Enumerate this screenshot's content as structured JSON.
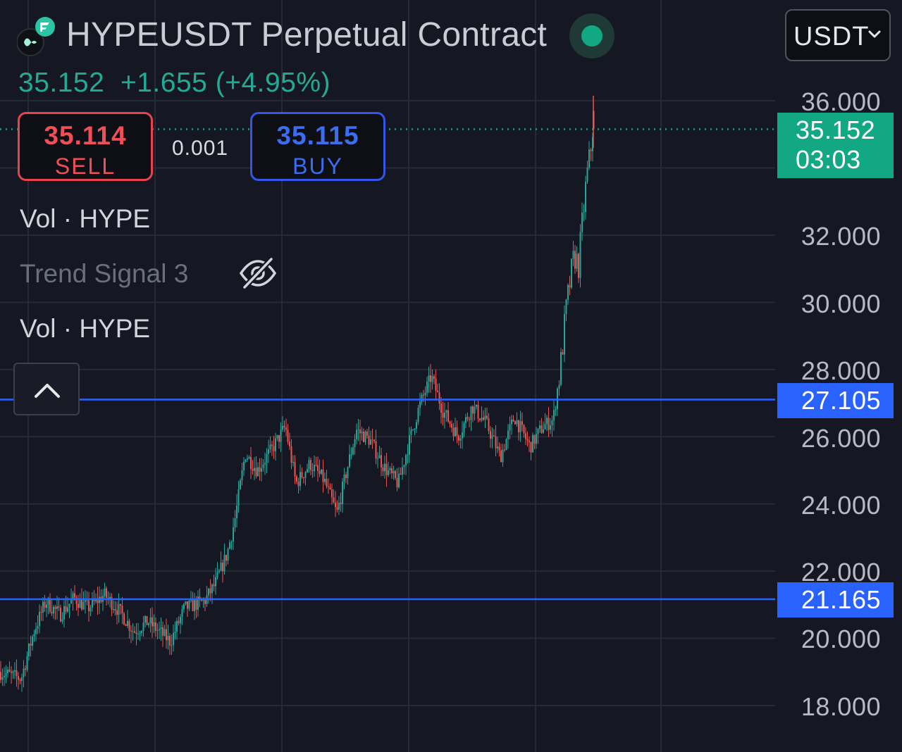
{
  "header": {
    "title": "HYPEUSDT Perpetual Contract",
    "currency": "USDT",
    "last_price": "35.152",
    "change": "+1.655",
    "change_pct": "(+4.95%)"
  },
  "trade": {
    "sell_price": "35.114",
    "sell_label": "SELL",
    "buy_price": "35.115",
    "buy_label": "BUY",
    "spread": "0.001"
  },
  "indicators": [
    {
      "label": "Vol · HYPE",
      "visible": true
    },
    {
      "label": "Trend Signal 3",
      "visible": false
    },
    {
      "label": "Vol · HYPE",
      "visible": true
    }
  ],
  "price_axis": {
    "ticks": [
      "36.000",
      "32.000",
      "30.000",
      "28.000",
      "26.000",
      "24.000",
      "22.000",
      "20.000",
      "18.000"
    ],
    "current_price_tag": {
      "price": "35.152",
      "countdown": "03:03"
    },
    "horizontal_lines": [
      {
        "price": "27.105"
      },
      {
        "price": "21.165"
      }
    ]
  },
  "colors": {
    "background": "#151822",
    "grid": "#262a35",
    "up": "#26a69a",
    "down": "#ef5350",
    "price_change": "#22ab94",
    "sell": "#e5444e",
    "buy": "#3355e8",
    "hline": "#2962ff",
    "price_tag": "#13a884"
  },
  "icons": {
    "logo": "hype-logo-icon",
    "status": "connection-status-icon",
    "currency_chevron": "chevron-down-icon",
    "hidden": "eye-off-icon",
    "collapse": "chevron-up-icon"
  }
}
